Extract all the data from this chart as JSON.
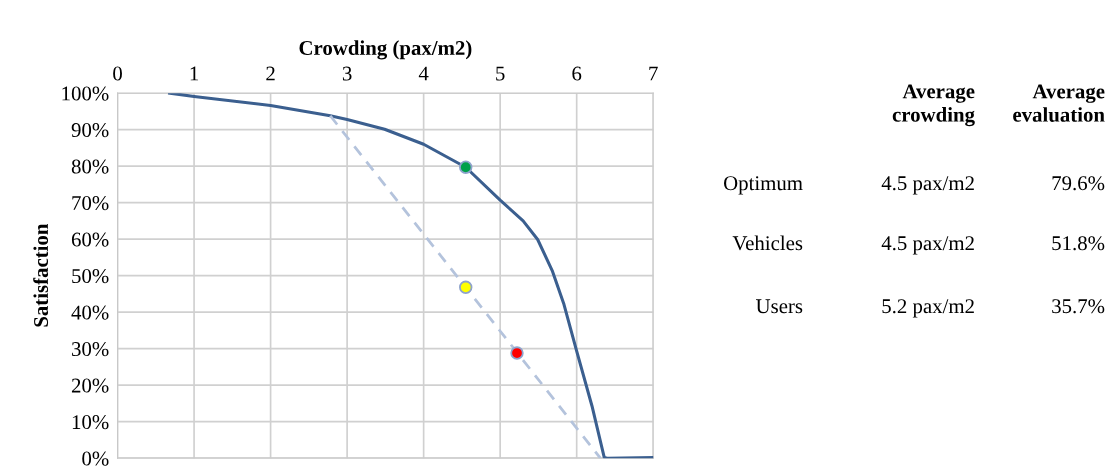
{
  "chart_data": [
    {
      "type": "line",
      "xlabel": "Crowding (pax/m2)",
      "ylabel": "Satisfaction",
      "xlim": [
        0,
        7
      ],
      "xticks": [
        0,
        1,
        2,
        3,
        4,
        5,
        6,
        7
      ],
      "ylim": [
        0,
        100
      ],
      "yticks": [
        {
          "value": 0,
          "label": "0%"
        },
        {
          "value": 10,
          "label": "10%"
        },
        {
          "value": 20,
          "label": "20%"
        },
        {
          "value": 30,
          "label": "30%"
        },
        {
          "value": 40,
          "label": "40%"
        },
        {
          "value": 50,
          "label": "50%"
        },
        {
          "value": 60,
          "label": "60%"
        },
        {
          "value": 70,
          "label": "70%"
        },
        {
          "value": 80,
          "label": "80%"
        },
        {
          "value": 90,
          "label": "90%"
        },
        {
          "value": 100,
          "label": "100%"
        }
      ],
      "grid": true,
      "legend": false,
      "marker": "none",
      "series": [
        {
          "type": "line",
          "color": "#3b5f8f",
          "line_style": "solid",
          "x": [
            0.68,
            1.0,
            2.0,
            2.78,
            3.0,
            3.49,
            4.0,
            4.55,
            5.0,
            5.3,
            5.49,
            5.68,
            5.83,
            6.0,
            6.2,
            6.36,
            6.4,
            7.0
          ],
          "values": [
            100,
            99.1,
            96.6,
            93.8,
            92.8,
            90.1,
            86.0,
            79.7,
            70.7,
            65.0,
            59.9,
            51.4,
            42.4,
            29.3,
            14.3,
            0.2,
            0,
            0.2
          ]
        },
        {
          "type": "line",
          "color": "#b4c3dc",
          "line_style": "dashed",
          "x": [
            2.78,
            6.31
          ],
          "values": [
            93.8,
            0
          ]
        },
        {
          "type": "scatter",
          "marker": "circle",
          "x": [
            4.55,
            4.55,
            5.22
          ],
          "values": [
            79.7,
            46.8,
            28.8
          ],
          "colors": [
            "#00a04b",
            "#ffff00",
            "#ff0000"
          ]
        }
      ]
    },
    {
      "type": "other",
      "annotations": [
        "Average\ncrowding",
        "Average\nevaluation",
        "Optimum",
        "4.5 pax/m2",
        "79.6%",
        "Vehicles",
        "4.5 pax/m2",
        "51.8%",
        "Users",
        "5.2 pax/m2",
        "35.7%"
      ]
    }
  ]
}
